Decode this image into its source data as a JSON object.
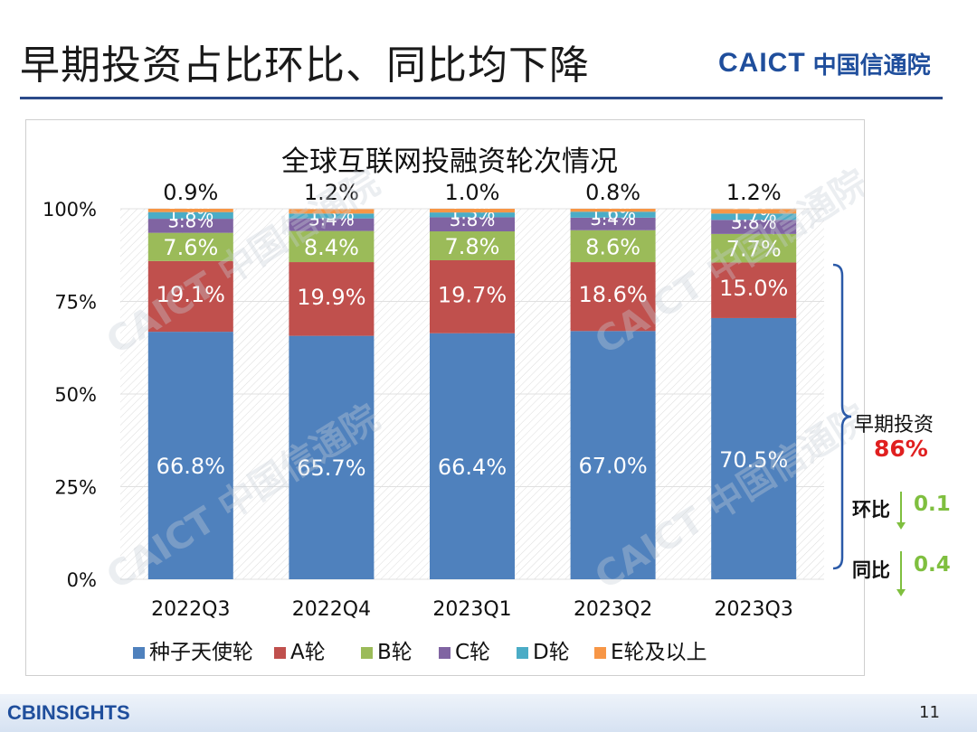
{
  "header": {
    "title": "早期投资占比环比、同比均下降",
    "logo_en": "CAICT",
    "logo_cn": "中国信通院"
  },
  "footer": {
    "logo": "CBINSIGHTS",
    "page_number": "11"
  },
  "annotation": {
    "early_label": "早期投资",
    "early_value": "86%",
    "qoq_label": "环比",
    "qoq_value": "0.1",
    "yoy_label": "同比",
    "yoy_value": "0.4"
  },
  "colors": {
    "seed": "#4f81bd",
    "a": "#c0504d",
    "b": "#9bbb59",
    "c": "#8064a2",
    "d": "#4bacc6",
    "e": "#f79646",
    "accent_red": "#e02020",
    "accent_green": "#7fbf3f",
    "brace": "#2b5aa8"
  },
  "chart_data": {
    "type": "bar",
    "stacked": true,
    "title": "全球互联网投融资轮次情况",
    "categories": [
      "2022Q3",
      "2022Q4",
      "2023Q1",
      "2023Q2",
      "2023Q3"
    ],
    "ylim": [
      0,
      100
    ],
    "yticks": [
      "0%",
      "25%",
      "50%",
      "75%",
      "100%"
    ],
    "series": [
      {
        "name": "种子天使轮",
        "color": "#4f81bd",
        "values": [
          66.8,
          65.7,
          66.4,
          67.0,
          70.5
        ],
        "labels": [
          "66.8%",
          "65.7%",
          "66.4%",
          "67.0%",
          "70.5%"
        ]
      },
      {
        "name": "A轮",
        "color": "#c0504d",
        "values": [
          19.1,
          19.9,
          19.7,
          18.6,
          15.0
        ],
        "labels": [
          "19.1%",
          "19.9%",
          "19.7%",
          "18.6%",
          "15.0%"
        ]
      },
      {
        "name": "B轮",
        "color": "#9bbb59",
        "values": [
          7.6,
          8.4,
          7.8,
          8.6,
          7.7
        ],
        "labels": [
          "7.6%",
          "8.4%",
          "7.8%",
          "8.6%",
          "7.7%"
        ]
      },
      {
        "name": "C轮",
        "color": "#8064a2",
        "values": [
          3.8,
          3.4,
          3.8,
          3.4,
          3.8
        ],
        "labels": [
          "3.8%",
          "3.4%",
          "3.8%",
          "3.4%",
          "3.8%"
        ]
      },
      {
        "name": "D轮",
        "color": "#4bacc6",
        "values": [
          1.8,
          1.3,
          1.3,
          1.6,
          1.7
        ],
        "labels": [
          "1.8%",
          "1.3%",
          "1.3%",
          "1.6%",
          "1.7%"
        ]
      },
      {
        "name": "E轮及以上",
        "color": "#f79646",
        "values": [
          0.9,
          1.2,
          1.0,
          0.8,
          1.2
        ],
        "labels": [
          "0.9%",
          "1.2%",
          "1.0%",
          "0.8%",
          "1.2%"
        ]
      }
    ],
    "legend_position": "bottom"
  }
}
